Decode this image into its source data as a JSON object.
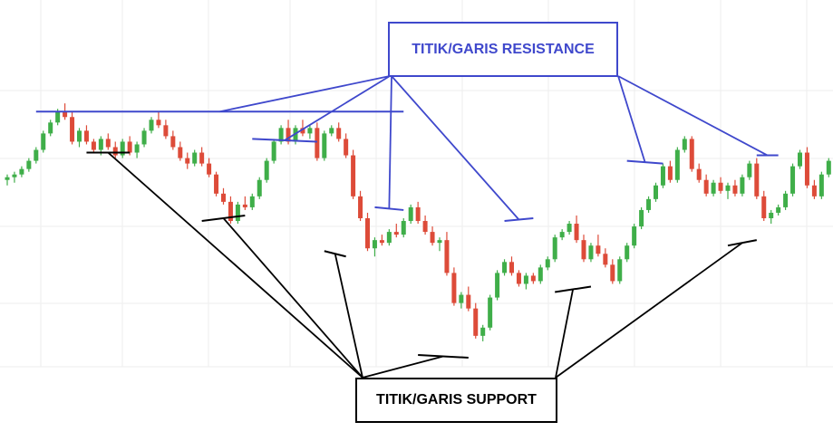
{
  "annotations": {
    "resistance_label": "TITIK/GARIS RESISTANCE",
    "support_label": "TITIK/GARIS SUPPORT"
  },
  "colors": {
    "bullish": "#3fae49",
    "bearish": "#dd4b39",
    "resistance": "#3f48cc",
    "support": "#000000",
    "grid": "#eeeeee"
  },
  "chart_data": {
    "type": "candlestick",
    "title": "",
    "xlabel": "",
    "ylabel": "",
    "grid": true,
    "x_index_range": [
      0,
      114
    ],
    "y_range": [
      0,
      100
    ],
    "candles": [
      {
        "o": 64,
        "h": 66,
        "l": 62,
        "c": 65
      },
      {
        "o": 65,
        "h": 67,
        "l": 63,
        "c": 66
      },
      {
        "o": 66,
        "h": 69,
        "l": 65,
        "c": 68
      },
      {
        "o": 68,
        "h": 72,
        "l": 67,
        "c": 71
      },
      {
        "o": 71,
        "h": 76,
        "l": 70,
        "c": 75
      },
      {
        "o": 75,
        "h": 82,
        "l": 74,
        "c": 81
      },
      {
        "o": 81,
        "h": 86,
        "l": 80,
        "c": 85
      },
      {
        "o": 85,
        "h": 90,
        "l": 84,
        "c": 89
      },
      {
        "o": 89,
        "h": 92,
        "l": 86,
        "c": 87
      },
      {
        "o": 87,
        "h": 89,
        "l": 77,
        "c": 78
      },
      {
        "o": 78,
        "h": 83,
        "l": 76,
        "c": 82
      },
      {
        "o": 82,
        "h": 84,
        "l": 77,
        "c": 78
      },
      {
        "o": 78,
        "h": 79,
        "l": 74,
        "c": 75
      },
      {
        "o": 75,
        "h": 80,
        "l": 73,
        "c": 79
      },
      {
        "o": 79,
        "h": 81,
        "l": 75,
        "c": 76
      },
      {
        "o": 76,
        "h": 78,
        "l": 72,
        "c": 73
      },
      {
        "o": 73,
        "h": 79,
        "l": 72,
        "c": 78
      },
      {
        "o": 78,
        "h": 80,
        "l": 73,
        "c": 74
      },
      {
        "o": 74,
        "h": 78,
        "l": 72,
        "c": 77
      },
      {
        "o": 77,
        "h": 83,
        "l": 76,
        "c": 82
      },
      {
        "o": 82,
        "h": 87,
        "l": 81,
        "c": 86
      },
      {
        "o": 86,
        "h": 89,
        "l": 83,
        "c": 84
      },
      {
        "o": 84,
        "h": 86,
        "l": 79,
        "c": 80
      },
      {
        "o": 80,
        "h": 82,
        "l": 75,
        "c": 76
      },
      {
        "o": 76,
        "h": 78,
        "l": 71,
        "c": 72
      },
      {
        "o": 72,
        "h": 74,
        "l": 68,
        "c": 70
      },
      {
        "o": 70,
        "h": 75,
        "l": 69,
        "c": 74
      },
      {
        "o": 74,
        "h": 76,
        "l": 69,
        "c": 70
      },
      {
        "o": 70,
        "h": 72,
        "l": 65,
        "c": 66
      },
      {
        "o": 66,
        "h": 67,
        "l": 58,
        "c": 59
      },
      {
        "o": 59,
        "h": 61,
        "l": 55,
        "c": 56
      },
      {
        "o": 56,
        "h": 58,
        "l": 48,
        "c": 49
      },
      {
        "o": 49,
        "h": 56,
        "l": 48,
        "c": 55
      },
      {
        "o": 55,
        "h": 58,
        "l": 53,
        "c": 54
      },
      {
        "o": 54,
        "h": 59,
        "l": 53,
        "c": 58
      },
      {
        "o": 58,
        "h": 65,
        "l": 57,
        "c": 64
      },
      {
        "o": 64,
        "h": 72,
        "l": 63,
        "c": 71
      },
      {
        "o": 71,
        "h": 79,
        "l": 70,
        "c": 78
      },
      {
        "o": 78,
        "h": 84,
        "l": 77,
        "c": 83
      },
      {
        "o": 83,
        "h": 86,
        "l": 77,
        "c": 78
      },
      {
        "o": 78,
        "h": 84,
        "l": 77,
        "c": 83
      },
      {
        "o": 83,
        "h": 86,
        "l": 80,
        "c": 81
      },
      {
        "o": 81,
        "h": 84,
        "l": 79,
        "c": 83
      },
      {
        "o": 83,
        "h": 85,
        "l": 71,
        "c": 72
      },
      {
        "o": 72,
        "h": 82,
        "l": 71,
        "c": 81
      },
      {
        "o": 81,
        "h": 84,
        "l": 80,
        "c": 83
      },
      {
        "o": 83,
        "h": 85,
        "l": 78,
        "c": 79
      },
      {
        "o": 79,
        "h": 81,
        "l": 72,
        "c": 73
      },
      {
        "o": 73,
        "h": 75,
        "l": 57,
        "c": 58
      },
      {
        "o": 58,
        "h": 60,
        "l": 49,
        "c": 50
      },
      {
        "o": 50,
        "h": 52,
        "l": 38,
        "c": 39
      },
      {
        "o": 39,
        "h": 43,
        "l": 36,
        "c": 42
      },
      {
        "o": 42,
        "h": 44,
        "l": 40,
        "c": 41
      },
      {
        "o": 41,
        "h": 46,
        "l": 40,
        "c": 45
      },
      {
        "o": 45,
        "h": 48,
        "l": 43,
        "c": 44
      },
      {
        "o": 44,
        "h": 50,
        "l": 43,
        "c": 49
      },
      {
        "o": 49,
        "h": 55,
        "l": 48,
        "c": 54
      },
      {
        "o": 54,
        "h": 56,
        "l": 48,
        "c": 49
      },
      {
        "o": 49,
        "h": 51,
        "l": 44,
        "c": 45
      },
      {
        "o": 45,
        "h": 47,
        "l": 40,
        "c": 41
      },
      {
        "o": 41,
        "h": 43,
        "l": 38,
        "c": 42
      },
      {
        "o": 42,
        "h": 45,
        "l": 29,
        "c": 30
      },
      {
        "o": 30,
        "h": 32,
        "l": 18,
        "c": 19
      },
      {
        "o": 19,
        "h": 23,
        "l": 17,
        "c": 22
      },
      {
        "o": 22,
        "h": 25,
        "l": 16,
        "c": 17
      },
      {
        "o": 17,
        "h": 19,
        "l": 6,
        "c": 7
      },
      {
        "o": 7,
        "h": 11,
        "l": 5,
        "c": 10
      },
      {
        "o": 10,
        "h": 22,
        "l": 9,
        "c": 21
      },
      {
        "o": 21,
        "h": 31,
        "l": 20,
        "c": 30
      },
      {
        "o": 30,
        "h": 35,
        "l": 29,
        "c": 34
      },
      {
        "o": 34,
        "h": 36,
        "l": 29,
        "c": 30
      },
      {
        "o": 30,
        "h": 31,
        "l": 25,
        "c": 26
      },
      {
        "o": 26,
        "h": 30,
        "l": 24,
        "c": 29
      },
      {
        "o": 29,
        "h": 30,
        "l": 26,
        "c": 27
      },
      {
        "o": 27,
        "h": 33,
        "l": 26,
        "c": 32
      },
      {
        "o": 32,
        "h": 36,
        "l": 31,
        "c": 35
      },
      {
        "o": 35,
        "h": 44,
        "l": 34,
        "c": 43
      },
      {
        "o": 43,
        "h": 46,
        "l": 42,
        "c": 45
      },
      {
        "o": 45,
        "h": 49,
        "l": 44,
        "c": 48
      },
      {
        "o": 48,
        "h": 51,
        "l": 41,
        "c": 42
      },
      {
        "o": 42,
        "h": 44,
        "l": 34,
        "c": 35
      },
      {
        "o": 35,
        "h": 41,
        "l": 34,
        "c": 40
      },
      {
        "o": 40,
        "h": 44,
        "l": 36,
        "c": 37
      },
      {
        "o": 37,
        "h": 39,
        "l": 32,
        "c": 33
      },
      {
        "o": 33,
        "h": 35,
        "l": 26,
        "c": 27
      },
      {
        "o": 27,
        "h": 36,
        "l": 26,
        "c": 35
      },
      {
        "o": 35,
        "h": 41,
        "l": 34,
        "c": 40
      },
      {
        "o": 40,
        "h": 48,
        "l": 39,
        "c": 47
      },
      {
        "o": 47,
        "h": 54,
        "l": 46,
        "c": 53
      },
      {
        "o": 53,
        "h": 58,
        "l": 52,
        "c": 57
      },
      {
        "o": 57,
        "h": 63,
        "l": 56,
        "c": 62
      },
      {
        "o": 62,
        "h": 70,
        "l": 61,
        "c": 69
      },
      {
        "o": 69,
        "h": 71,
        "l": 63,
        "c": 64
      },
      {
        "o": 64,
        "h": 76,
        "l": 63,
        "c": 75
      },
      {
        "o": 75,
        "h": 80,
        "l": 74,
        "c": 79
      },
      {
        "o": 79,
        "h": 80,
        "l": 67,
        "c": 68
      },
      {
        "o": 68,
        "h": 70,
        "l": 63,
        "c": 64
      },
      {
        "o": 64,
        "h": 66,
        "l": 58,
        "c": 59
      },
      {
        "o": 59,
        "h": 64,
        "l": 58,
        "c": 63
      },
      {
        "o": 63,
        "h": 65,
        "l": 59,
        "c": 60
      },
      {
        "o": 60,
        "h": 63,
        "l": 57,
        "c": 62
      },
      {
        "o": 62,
        "h": 64,
        "l": 58,
        "c": 59
      },
      {
        "o": 59,
        "h": 66,
        "l": 58,
        "c": 65
      },
      {
        "o": 65,
        "h": 71,
        "l": 64,
        "c": 70
      },
      {
        "o": 70,
        "h": 72,
        "l": 57,
        "c": 58
      },
      {
        "o": 58,
        "h": 60,
        "l": 49,
        "c": 50
      },
      {
        "o": 50,
        "h": 53,
        "l": 48,
        "c": 52
      },
      {
        "o": 52,
        "h": 55,
        "l": 51,
        "c": 54
      },
      {
        "o": 54,
        "h": 60,
        "l": 53,
        "c": 59
      },
      {
        "o": 59,
        "h": 70,
        "l": 58,
        "c": 69
      },
      {
        "o": 69,
        "h": 75,
        "l": 68,
        "c": 74
      },
      {
        "o": 74,
        "h": 76,
        "l": 61,
        "c": 62
      },
      {
        "o": 62,
        "h": 64,
        "l": 57,
        "c": 58
      },
      {
        "o": 58,
        "h": 67,
        "l": 57,
        "c": 66
      },
      {
        "o": 66,
        "h": 72,
        "l": 65,
        "c": 71
      },
      {
        "o": 71,
        "h": 75,
        "l": 70,
        "c": 74
      }
    ],
    "resistance_lines": [
      [
        [
          4,
          89
        ],
        [
          55,
          89
        ]
      ],
      [
        [
          34,
          79
        ],
        [
          43,
          78
        ]
      ],
      [
        [
          51,
          54
        ],
        [
          55,
          53
        ]
      ],
      [
        [
          69,
          49
        ],
        [
          73,
          50
        ]
      ],
      [
        [
          86,
          71
        ],
        [
          91,
          70
        ]
      ],
      [
        [
          104,
          73
        ],
        [
          107,
          73
        ]
      ]
    ],
    "support_lines": [
      [
        [
          11,
          74
        ],
        [
          17,
          74
        ]
      ],
      [
        [
          27,
          49
        ],
        [
          33,
          51
        ]
      ],
      [
        [
          44,
          38
        ],
        [
          47,
          36
        ]
      ],
      [
        [
          57,
          0
        ],
        [
          64,
          -1
        ]
      ],
      [
        [
          76,
          23
        ],
        [
          81,
          25
        ]
      ],
      [
        [
          100,
          40
        ],
        [
          104,
          42
        ]
      ]
    ]
  }
}
